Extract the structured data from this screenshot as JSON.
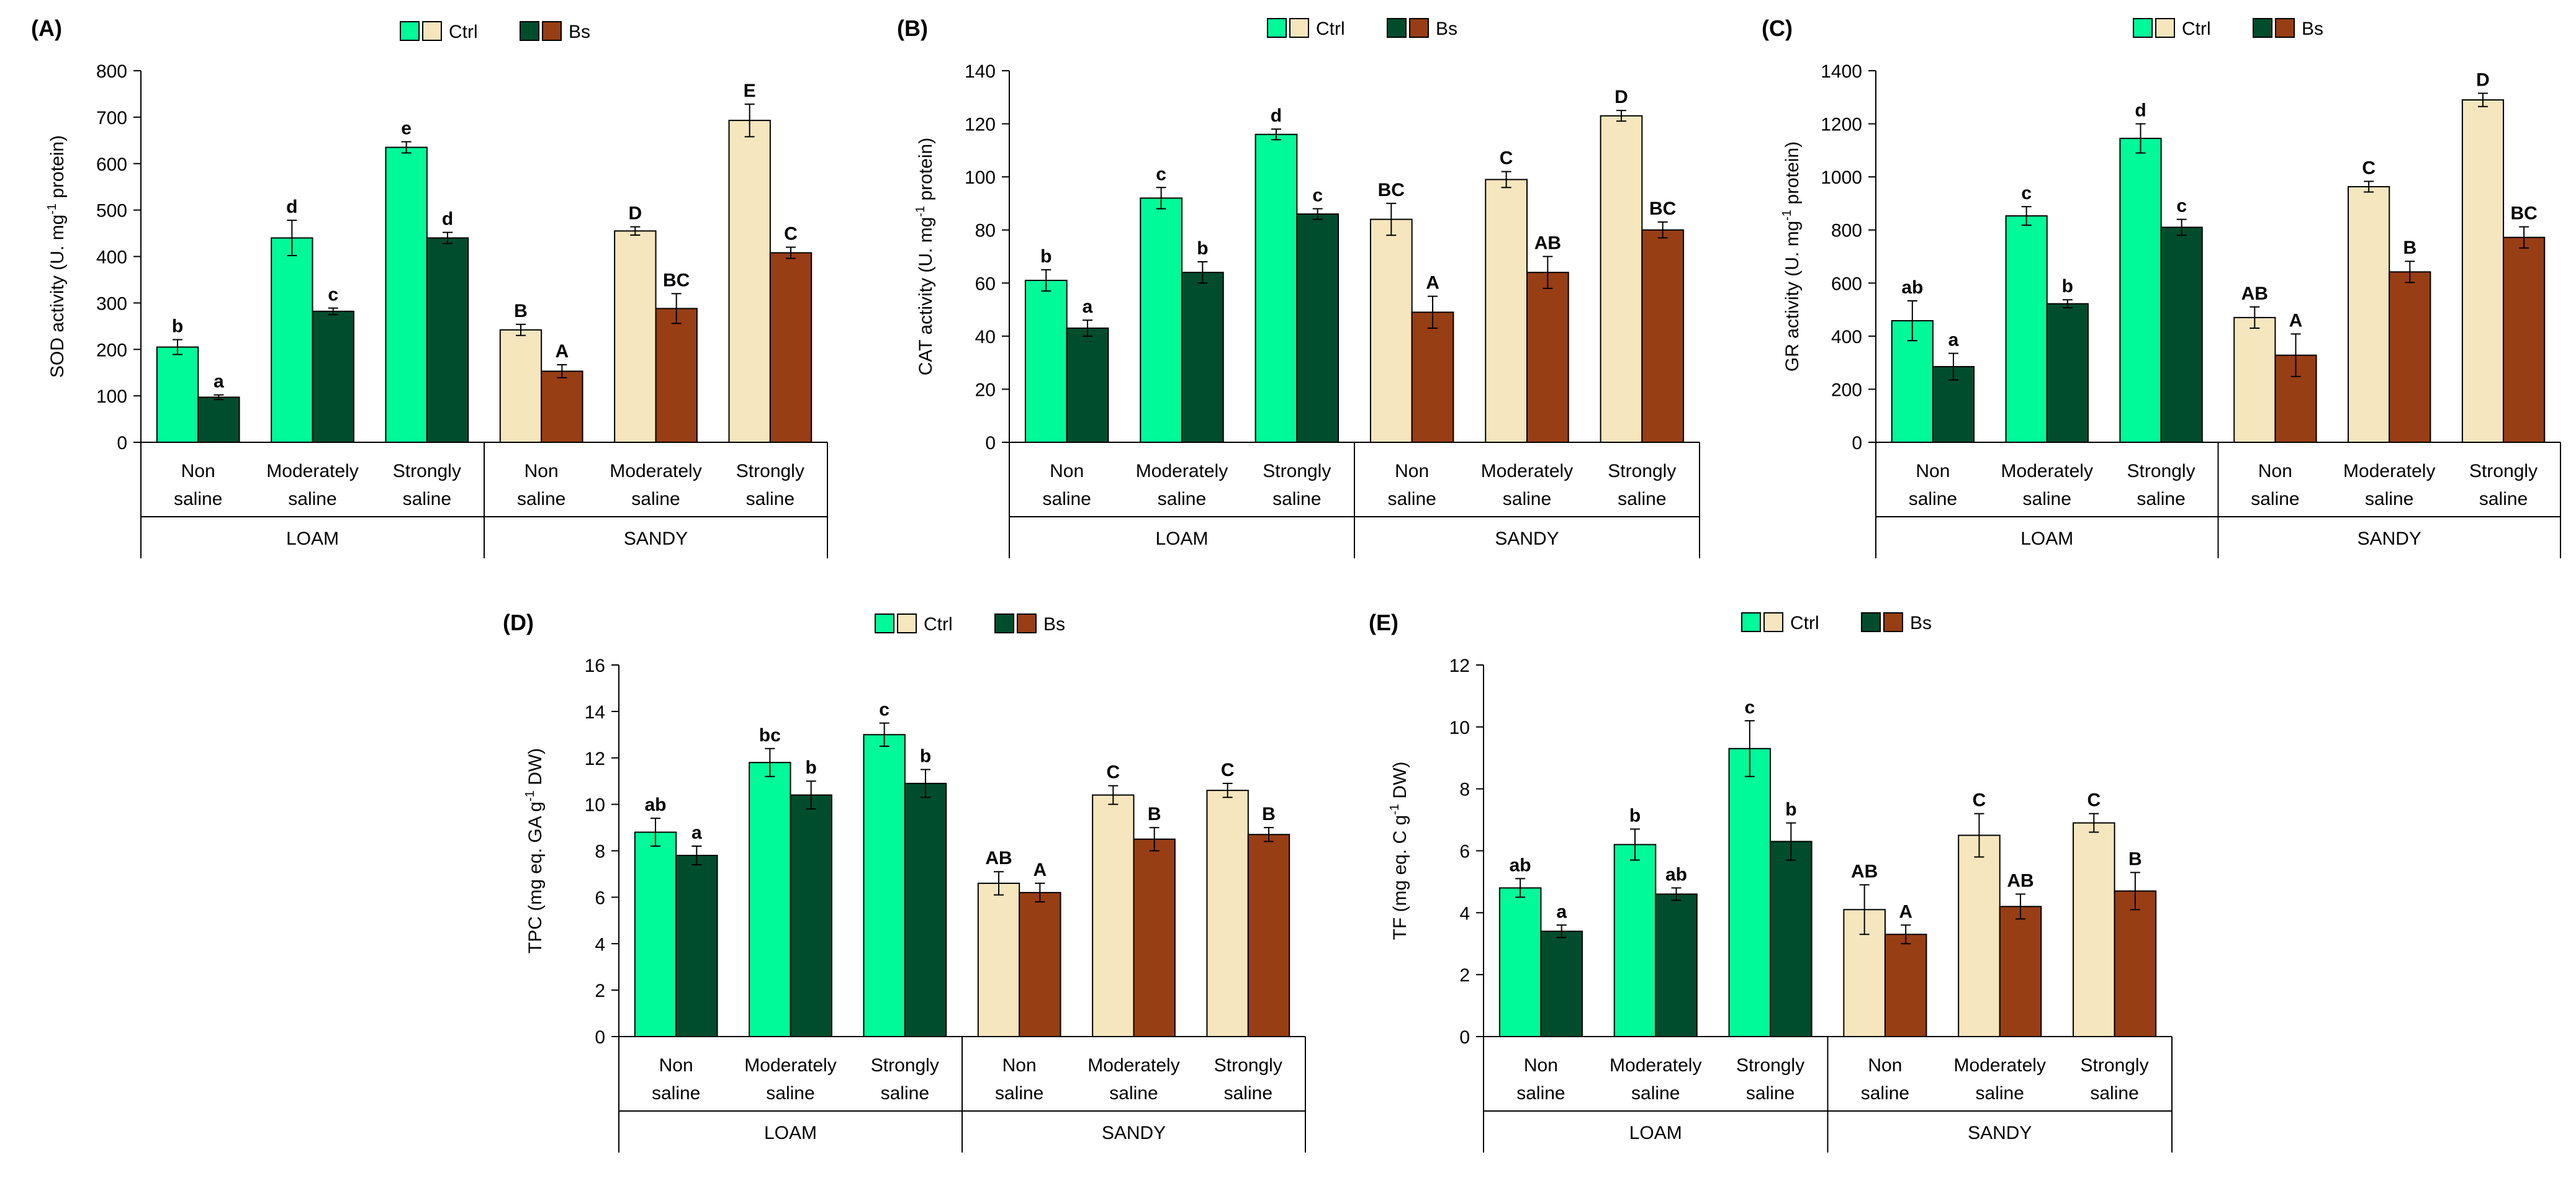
{
  "figure": {
    "background": "#ffffff",
    "colors": {
      "loam_ctrl": "#00FA9A",
      "loam_bs": "#004D2E",
      "sandy_ctrl": "#F5E6BE",
      "sandy_bs": "#983E15",
      "axis": "#000000"
    }
  },
  "chart_data": [
    {
      "type": "bar",
      "panel": "(A)",
      "ylabel_base": "SOD activity (U. mg",
      "ylabel_sup": "-1",
      "ylabel_tail": " protein)",
      "ylim": [
        0,
        800
      ],
      "yticks": [
        0,
        100,
        200,
        300,
        400,
        500,
        600,
        700,
        800
      ],
      "groups": [
        "LOAM",
        "SANDY"
      ],
      "categories": [
        "Non saline",
        "Moderately saline",
        "Strongly saline"
      ],
      "legend": [
        "Ctrl",
        "Bs"
      ],
      "series": [
        {
          "name": "LOAM Ctrl",
          "color_key": "loam_ctrl",
          "values": [
            205,
            440,
            635
          ],
          "errors": [
            16,
            38,
            12
          ],
          "labels": [
            "b",
            "d",
            "e"
          ]
        },
        {
          "name": "LOAM Bs",
          "color_key": "loam_bs",
          "values": [
            97,
            282,
            440
          ],
          "errors": [
            5,
            7,
            12
          ],
          "labels": [
            "a",
            "c",
            "d"
          ]
        },
        {
          "name": "SANDY Ctrl",
          "color_key": "sandy_ctrl",
          "values": [
            242,
            455,
            693
          ],
          "errors": [
            12,
            9,
            35
          ],
          "labels": [
            "B",
            "D",
            "E"
          ]
        },
        {
          "name": "SANDY Bs",
          "color_key": "sandy_bs",
          "values": [
            153,
            288,
            408
          ],
          "errors": [
            14,
            32,
            12
          ],
          "labels": [
            "A",
            "BC",
            "C"
          ]
        }
      ]
    },
    {
      "type": "bar",
      "panel": "(B)",
      "ylabel_base": "CAT activity (U. mg",
      "ylabel_sup": "-1",
      "ylabel_tail": " protein)",
      "ylim": [
        0,
        140
      ],
      "yticks": [
        0,
        20,
        40,
        60,
        80,
        100,
        120,
        140
      ],
      "groups": [
        "LOAM",
        "SANDY"
      ],
      "categories": [
        "Non saline",
        "Moderately saline",
        "Strongly saline"
      ],
      "legend": [
        "Ctrl",
        "Bs"
      ],
      "series": [
        {
          "name": "LOAM Ctrl",
          "color_key": "loam_ctrl",
          "values": [
            61,
            92,
            116
          ],
          "errors": [
            4,
            4,
            2
          ],
          "labels": [
            "b",
            "c",
            "d"
          ]
        },
        {
          "name": "LOAM Bs",
          "color_key": "loam_bs",
          "values": [
            43,
            64,
            86
          ],
          "errors": [
            3,
            4,
            2
          ],
          "labels": [
            "a",
            "b",
            "c"
          ]
        },
        {
          "name": "SANDY Ctrl",
          "color_key": "sandy_ctrl",
          "values": [
            84,
            99,
            123
          ],
          "errors": [
            6,
            3,
            2
          ],
          "labels": [
            "BC",
            "C",
            "D"
          ]
        },
        {
          "name": "SANDY Bs",
          "color_key": "sandy_bs",
          "values": [
            49,
            64,
            80
          ],
          "errors": [
            6,
            6,
            3
          ],
          "labels": [
            "A",
            "AB",
            "BC"
          ]
        }
      ]
    },
    {
      "type": "bar",
      "panel": "(C)",
      "ylabel_base": "GR activity (U. mg",
      "ylabel_sup": "-1",
      "ylabel_tail": " protein)",
      "ylim": [
        0,
        1400
      ],
      "yticks": [
        0,
        200,
        400,
        600,
        800,
        1000,
        1200,
        1400
      ],
      "groups": [
        "LOAM",
        "SANDY"
      ],
      "categories": [
        "Non saline",
        "Moderately saline",
        "Strongly saline"
      ],
      "legend": [
        "Ctrl",
        "Bs"
      ],
      "series": [
        {
          "name": "LOAM Ctrl",
          "color_key": "loam_ctrl",
          "values": [
            458,
            853,
            1145
          ],
          "errors": [
            75,
            35,
            55
          ],
          "labels": [
            "ab",
            "c",
            "d"
          ]
        },
        {
          "name": "LOAM Bs",
          "color_key": "loam_bs",
          "values": [
            285,
            522,
            810
          ],
          "errors": [
            50,
            15,
            30
          ],
          "labels": [
            "a",
            "b",
            "c"
          ]
        },
        {
          "name": "SANDY Ctrl",
          "color_key": "sandy_ctrl",
          "values": [
            470,
            963,
            1290
          ],
          "errors": [
            40,
            20,
            25
          ],
          "labels": [
            "AB",
            "C",
            "D"
          ]
        },
        {
          "name": "SANDY Bs",
          "color_key": "sandy_bs",
          "values": [
            328,
            642,
            772
          ],
          "errors": [
            80,
            40,
            40
          ],
          "labels": [
            "A",
            "B",
            "BC"
          ]
        }
      ]
    },
    {
      "type": "bar",
      "panel": "(D)",
      "ylabel_base": "TPC (mg eq. GA g",
      "ylabel_sup": "-1",
      "ylabel_tail": " DW)",
      "ylim": [
        0,
        16
      ],
      "yticks": [
        0,
        2,
        4,
        6,
        8,
        10,
        12,
        14,
        16
      ],
      "groups": [
        "LOAM",
        "SANDY"
      ],
      "categories": [
        "Non saline",
        "Moderately saline",
        "Strongly saline"
      ],
      "legend": [
        "Ctrl",
        "Bs"
      ],
      "series": [
        {
          "name": "LOAM Ctrl",
          "color_key": "loam_ctrl",
          "values": [
            8.8,
            11.8,
            13.0
          ],
          "errors": [
            0.6,
            0.6,
            0.5
          ],
          "labels": [
            "ab",
            "bc",
            "c"
          ]
        },
        {
          "name": "LOAM Bs",
          "color_key": "loam_bs",
          "values": [
            7.8,
            10.4,
            10.9
          ],
          "errors": [
            0.4,
            0.6,
            0.6
          ],
          "labels": [
            "a",
            "b",
            "b"
          ]
        },
        {
          "name": "SANDY Ctrl",
          "color_key": "sandy_ctrl",
          "values": [
            6.6,
            10.4,
            10.6
          ],
          "errors": [
            0.5,
            0.4,
            0.3
          ],
          "labels": [
            "AB",
            "C",
            "C"
          ]
        },
        {
          "name": "SANDY Bs",
          "color_key": "sandy_bs",
          "values": [
            6.2,
            8.5,
            8.7
          ],
          "errors": [
            0.4,
            0.5,
            0.3
          ],
          "labels": [
            "A",
            "B",
            "B"
          ]
        }
      ]
    },
    {
      "type": "bar",
      "panel": "(E)",
      "ylabel_base": "TF (mg eq. C g",
      "ylabel_sup": "-1",
      "ylabel_tail": " DW)",
      "ylim": [
        0,
        12
      ],
      "yticks": [
        0,
        2,
        4,
        6,
        8,
        10,
        12
      ],
      "groups": [
        "LOAM",
        "SANDY"
      ],
      "categories": [
        "Non saline",
        "Moderately saline",
        "Strongly saline"
      ],
      "legend": [
        "Ctrl",
        "Bs"
      ],
      "series": [
        {
          "name": "LOAM Ctrl",
          "color_key": "loam_ctrl",
          "values": [
            4.8,
            6.2,
            9.3
          ],
          "errors": [
            0.3,
            0.5,
            0.9
          ],
          "labels": [
            "ab",
            "b",
            "c"
          ]
        },
        {
          "name": "LOAM Bs",
          "color_key": "loam_bs",
          "values": [
            3.4,
            4.6,
            6.3
          ],
          "errors": [
            0.2,
            0.2,
            0.6
          ],
          "labels": [
            "a",
            "ab",
            "b"
          ]
        },
        {
          "name": "SANDY Ctrl",
          "color_key": "sandy_ctrl",
          "values": [
            4.1,
            6.5,
            6.9
          ],
          "errors": [
            0.8,
            0.7,
            0.3
          ],
          "labels": [
            "AB",
            "C",
            "C"
          ]
        },
        {
          "name": "SANDY Bs",
          "color_key": "sandy_bs",
          "values": [
            3.3,
            4.2,
            4.7
          ],
          "errors": [
            0.3,
            0.4,
            0.6
          ],
          "labels": [
            "A",
            "AB",
            "B"
          ]
        }
      ]
    }
  ]
}
